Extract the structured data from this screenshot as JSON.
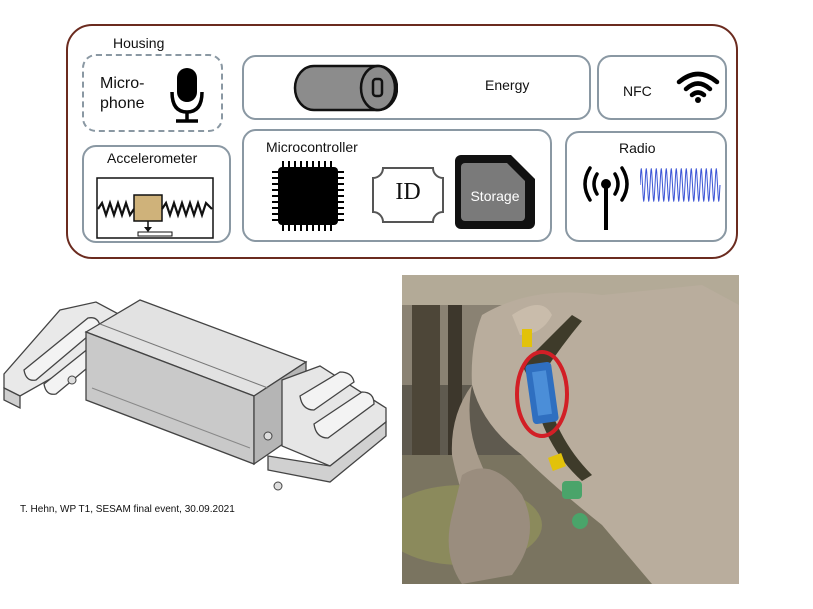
{
  "diagram": {
    "housing": {
      "label": "Housing"
    },
    "microphone": {
      "label_line1": "Micro-",
      "label_line2": "phone"
    },
    "energy": {
      "label": "Energy"
    },
    "nfc": {
      "label": "NFC"
    },
    "accelerometer": {
      "label": "Accelerometer"
    },
    "microcontroller": {
      "label": "Microcontroller",
      "id_label": "ID",
      "storage_label": "Storage"
    },
    "radio": {
      "label": "Radio"
    }
  },
  "caption": "T. Hehn, WP T1, SESAM final event, 30.09.2021",
  "colors": {
    "outer_border": "#6b2b1f",
    "box_border": "#8a98a3",
    "highlight_circle": "#d21f26",
    "accel_mass": "#cfb27a",
    "radio_wave": "#3a54d6"
  }
}
